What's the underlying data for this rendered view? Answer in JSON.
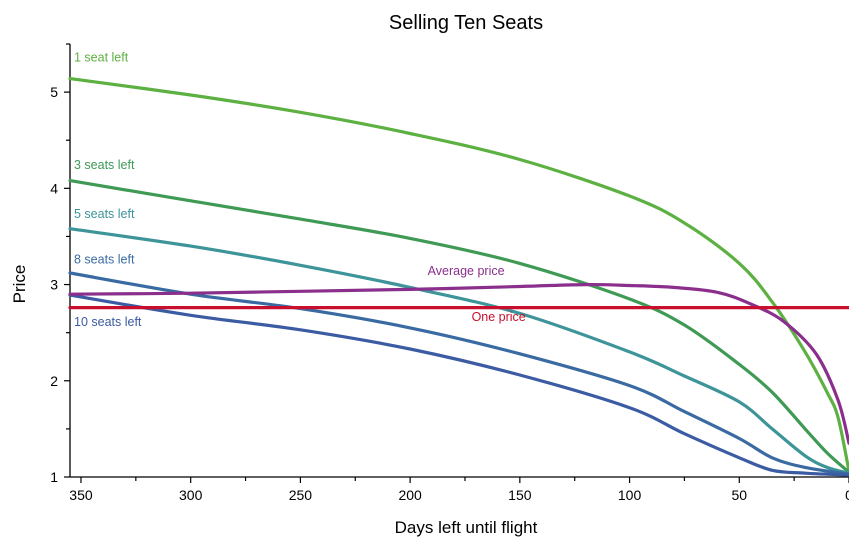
{
  "chart_data": {
    "type": "line",
    "title": "Selling Ten Seats",
    "xlabel": "Days left until flight",
    "ylabel": "Price",
    "xlim": [
      355,
      0
    ],
    "ylim": [
      1,
      5.5
    ],
    "x_ticks": [
      350,
      300,
      250,
      200,
      150,
      100,
      50,
      0
    ],
    "x_tick_labels": [
      "350",
      "300",
      "250",
      "200",
      "150",
      "100",
      "50",
      "0"
    ],
    "y_ticks": [
      1,
      2,
      3,
      4,
      5
    ],
    "y_tick_labels": [
      "1",
      "2",
      "3",
      "4",
      "5"
    ],
    "grid": false,
    "legend": "inline labels",
    "series": [
      {
        "name": "1 seat left",
        "color": "#5db042",
        "label_at": [
          355,
          5.32
        ],
        "points": [
          [
            355,
            5.14
          ],
          [
            300,
            4.97
          ],
          [
            250,
            4.79
          ],
          [
            200,
            4.57
          ],
          [
            150,
            4.3
          ],
          [
            100,
            3.92
          ],
          [
            75,
            3.64
          ],
          [
            50,
            3.22
          ],
          [
            35,
            2.82
          ],
          [
            20,
            2.3
          ],
          [
            10,
            1.88
          ],
          [
            5,
            1.62
          ],
          [
            0,
            1.06
          ]
        ]
      },
      {
        "name": "3 seats left",
        "color": "#3f9a55",
        "label_at": [
          355,
          4.2
        ],
        "points": [
          [
            355,
            4.08
          ],
          [
            300,
            3.87
          ],
          [
            250,
            3.68
          ],
          [
            200,
            3.48
          ],
          [
            150,
            3.22
          ],
          [
            100,
            2.85
          ],
          [
            75,
            2.58
          ],
          [
            50,
            2.17
          ],
          [
            35,
            1.88
          ],
          [
            20,
            1.5
          ],
          [
            10,
            1.25
          ],
          [
            0,
            1.05
          ]
        ]
      },
      {
        "name": "5 seats left",
        "color": "#3d9499",
        "label_at": [
          355,
          3.69
        ],
        "points": [
          [
            355,
            3.58
          ],
          [
            300,
            3.4
          ],
          [
            250,
            3.2
          ],
          [
            200,
            2.97
          ],
          [
            150,
            2.7
          ],
          [
            100,
            2.3
          ],
          [
            75,
            2.05
          ],
          [
            50,
            1.78
          ],
          [
            35,
            1.5
          ],
          [
            20,
            1.22
          ],
          [
            10,
            1.1
          ],
          [
            0,
            1.04
          ]
        ]
      },
      {
        "name": "8 seats left",
        "color": "#3a6aa2",
        "label_at": [
          355,
          3.22
        ],
        "points": [
          [
            355,
            3.12
          ],
          [
            300,
            2.9
          ],
          [
            250,
            2.75
          ],
          [
            200,
            2.55
          ],
          [
            150,
            2.28
          ],
          [
            100,
            1.95
          ],
          [
            75,
            1.68
          ],
          [
            50,
            1.4
          ],
          [
            35,
            1.2
          ],
          [
            20,
            1.1
          ],
          [
            0,
            1.03
          ]
        ]
      },
      {
        "name": "10 seats left",
        "color": "#3b5ba3",
        "label_at": [
          355,
          2.57
        ],
        "points": [
          [
            355,
            2.89
          ],
          [
            300,
            2.68
          ],
          [
            250,
            2.53
          ],
          [
            200,
            2.33
          ],
          [
            150,
            2.06
          ],
          [
            100,
            1.72
          ],
          [
            75,
            1.45
          ],
          [
            50,
            1.2
          ],
          [
            35,
            1.07
          ],
          [
            20,
            1.04
          ],
          [
            0,
            1.02
          ]
        ]
      },
      {
        "name": "Average price",
        "color": "#8a2f8c",
        "label_at": [
          192,
          3.1
        ],
        "points": [
          [
            355,
            2.9
          ],
          [
            300,
            2.91
          ],
          [
            250,
            2.93
          ],
          [
            200,
            2.95
          ],
          [
            150,
            2.98
          ],
          [
            120,
            3.0
          ],
          [
            100,
            2.99
          ],
          [
            80,
            2.97
          ],
          [
            60,
            2.92
          ],
          [
            45,
            2.8
          ],
          [
            30,
            2.62
          ],
          [
            15,
            2.28
          ],
          [
            5,
            1.8
          ],
          [
            0,
            1.35
          ]
        ]
      },
      {
        "name": "One price",
        "color": "#c8102e",
        "label_at": [
          172,
          2.62
        ],
        "points": [
          [
            355,
            2.76
          ],
          [
            0,
            2.76
          ]
        ]
      }
    ]
  }
}
